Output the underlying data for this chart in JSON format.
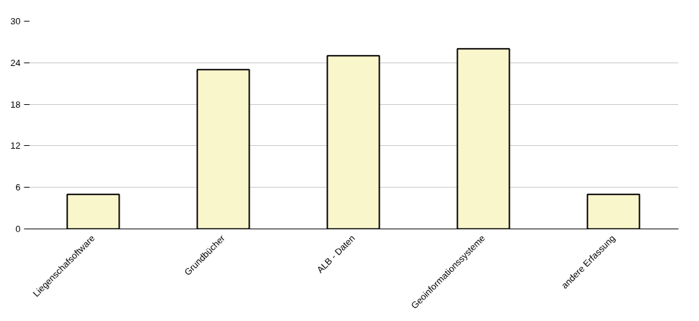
{
  "chart_data": {
    "type": "bar",
    "categories": [
      "Liegenschafsoftware",
      "Grundbücher",
      "ALB - Daten",
      "Geoinformationssysteme",
      "andere Erfassung"
    ],
    "values": [
      5,
      23,
      25,
      26,
      5
    ],
    "color": "#faf6cc",
    "ylim": [
      0,
      30
    ],
    "yticks": [
      0,
      6,
      12,
      18,
      24,
      30
    ],
    "grid": "y"
  }
}
